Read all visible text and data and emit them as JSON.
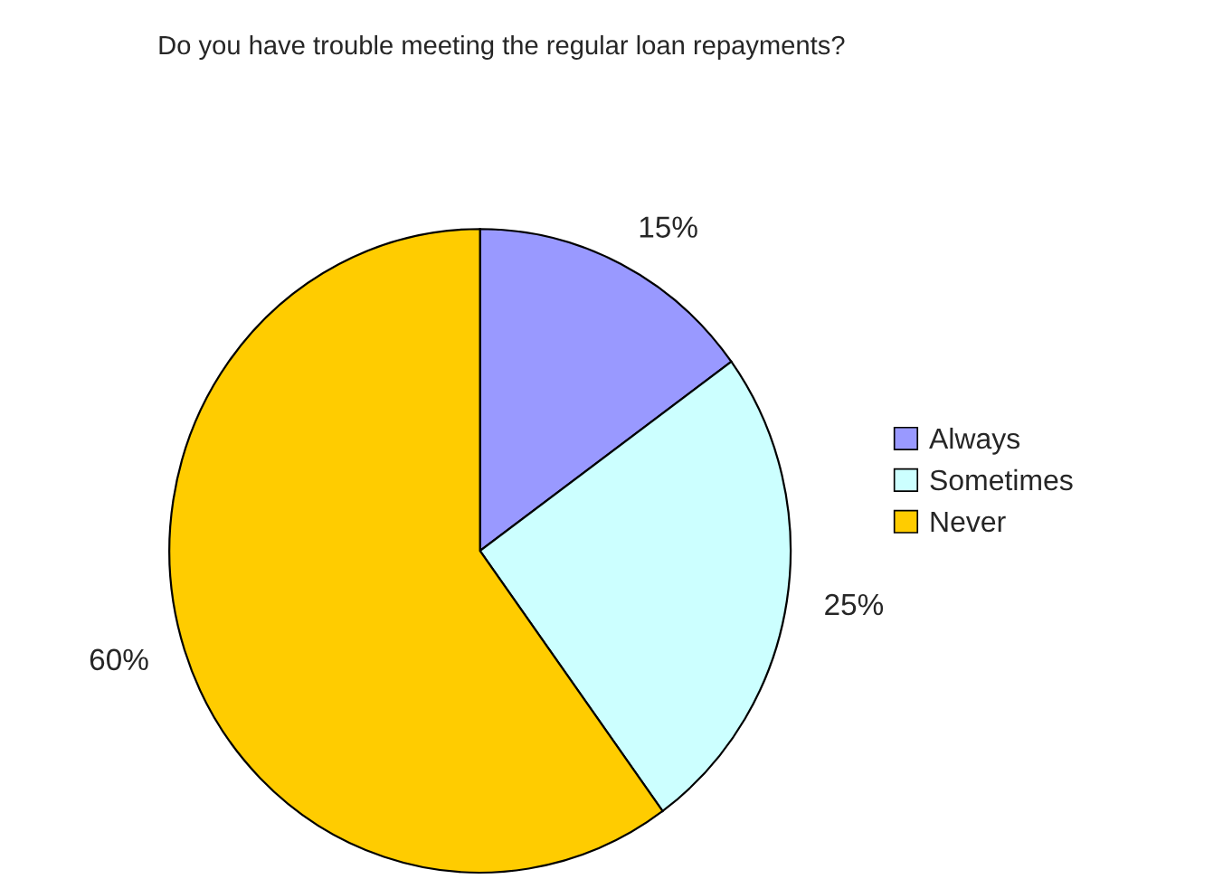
{
  "chart_data": {
    "type": "pie",
    "title": "Do you have trouble meeting the regular loan repayments?",
    "categories": [
      "Always",
      "Sometimes",
      "Never"
    ],
    "values": [
      15,
      25,
      60
    ],
    "value_labels": [
      "15%",
      "25%",
      "60%"
    ],
    "colors": [
      "#9999ff",
      "#ccffff",
      "#ffcc00"
    ],
    "legend": "right"
  }
}
